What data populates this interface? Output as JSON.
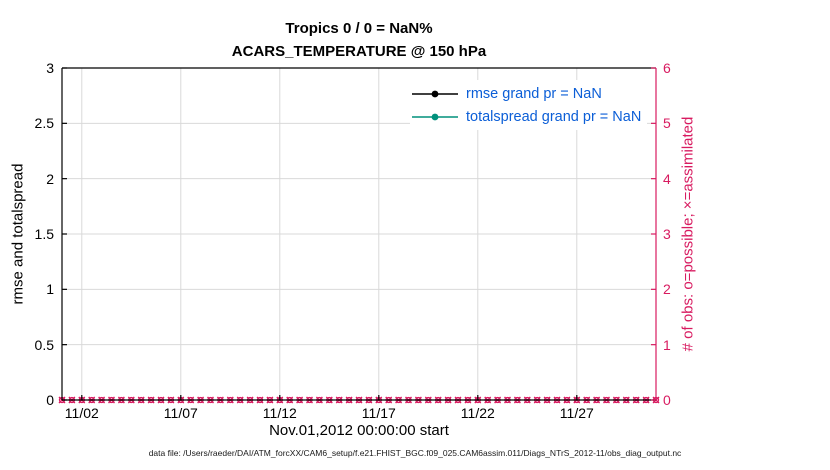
{
  "chart_data": {
    "type": "line",
    "title": "Tropics 0 / 0 = NaN%",
    "subtitle": "ACARS_TEMPERATURE @ 150 hPa",
    "xlabel": "Nov.01,2012 00:00:00 start",
    "footer": "data file: /Users/raeder/DAI/ATM_forcXX/CAM6_setup/f.e21.FHIST_BGC.f09_025.CAM6assim.011/Diags_NTrS_2012-11/obs_diag_output.nc",
    "grid": true,
    "legend_position": "top-right-inside",
    "left_axis": {
      "label": "rmse and totalspread",
      "lim": [
        0,
        3
      ],
      "ticks": [
        "0",
        "0.5",
        "1",
        "1.5",
        "2",
        "2.5",
        "3"
      ],
      "color": "#000000"
    },
    "right_axis": {
      "label": "# of obs: o=possible; ×=assimilated",
      "lim": [
        0,
        6
      ],
      "ticks": [
        "0",
        "1",
        "2",
        "3",
        "4",
        "5",
        "6"
      ],
      "color": "#d81b60"
    },
    "x_axis": {
      "lim_days": [
        0,
        30
      ],
      "tick_days": [
        1,
        6,
        11,
        16,
        21,
        26
      ],
      "tick_labels": [
        "11/02",
        "11/07",
        "11/12",
        "11/17",
        "11/22",
        "11/27"
      ]
    },
    "series": [
      {
        "name": "rmse grand pr = NaN",
        "color": "#000000",
        "marker": "filled-circle",
        "axis": "left",
        "values": []
      },
      {
        "name": "totalspread grand pr = NaN",
        "color": "#00917c",
        "marker": "filled-circle",
        "axis": "left",
        "values": []
      },
      {
        "name": "possible obs (o)",
        "color": "#d81b60",
        "marker": "o",
        "axis": "right",
        "constant_value": 0,
        "step_days": 0.5
      },
      {
        "name": "assimilated obs (x)",
        "color": "#d81b60",
        "marker": "x",
        "axis": "right",
        "constant_value": 0,
        "step_days": 0.5
      }
    ],
    "legend": [
      {
        "label": "rmse grand pr = NaN",
        "line_color": "#000000",
        "text_color": "#0b5ed7"
      },
      {
        "label": "totalspread grand pr = NaN",
        "line_color": "#00917c",
        "text_color": "#0b5ed7"
      }
    ]
  },
  "colors": {
    "grid": "#d9d9d9",
    "axis_black": "#000000",
    "axis_right": "#d81b60",
    "background": "#ffffff"
  }
}
